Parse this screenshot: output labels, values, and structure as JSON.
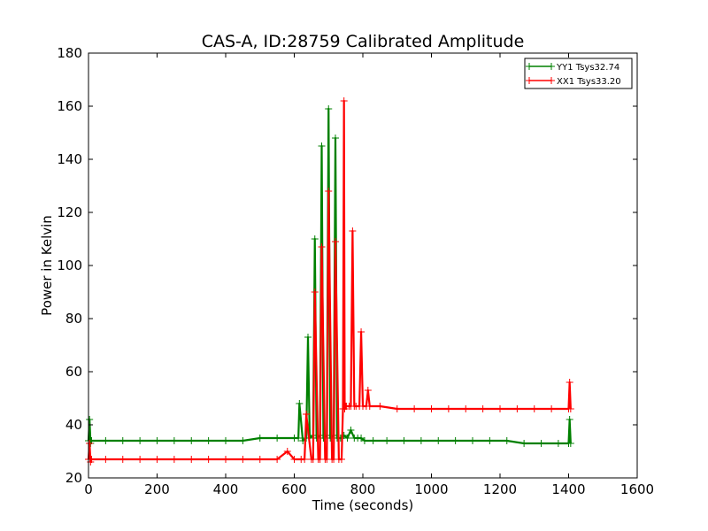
{
  "chart_data": {
    "type": "line",
    "title": "CAS-A, ID:28759 Calibrated Amplitude",
    "xlabel": "Time (seconds)",
    "ylabel": "Power in Kelvin",
    "xlim": [
      0,
      1600
    ],
    "ylim": [
      20,
      180
    ],
    "xticks": [
      0,
      200,
      400,
      600,
      800,
      1000,
      1200,
      1400,
      1600
    ],
    "yticks": [
      20,
      40,
      60,
      80,
      100,
      120,
      140,
      160,
      180
    ],
    "grid": false,
    "legend_position": "top-right",
    "marker": "+",
    "series": [
      {
        "name": "YY1 Tsys32.74",
        "color": "#008000",
        "x": [
          0,
          3,
          6,
          9,
          50,
          100,
          150,
          200,
          250,
          300,
          350,
          400,
          450,
          500,
          550,
          600,
          612,
          615,
          625,
          635,
          640,
          645,
          655,
          660,
          665,
          675,
          680,
          685,
          695,
          700,
          705,
          715,
          720,
          725,
          735,
          745,
          755,
          765,
          775,
          785,
          795,
          805,
          830,
          870,
          920,
          970,
          1020,
          1070,
          1120,
          1170,
          1220,
          1270,
          1320,
          1370,
          1400,
          1403,
          1406
        ],
        "y": [
          34,
          42,
          33,
          34,
          34,
          34,
          34,
          34,
          34,
          34,
          34,
          34,
          34,
          35,
          35,
          35,
          35,
          48,
          34,
          35,
          73,
          35,
          36,
          110,
          35,
          36,
          145,
          35,
          36,
          159,
          35,
          36,
          148,
          35,
          35,
          36,
          35,
          38,
          35,
          35,
          35,
          34,
          34,
          34,
          34,
          34,
          34,
          34,
          34,
          34,
          34,
          33,
          33,
          33,
          33,
          42,
          33
        ]
      },
      {
        "name": "XX1 Tsys33.20",
        "color": "#ff0000",
        "x": [
          0,
          3,
          6,
          9,
          50,
          100,
          150,
          200,
          250,
          300,
          350,
          400,
          450,
          500,
          550,
          580,
          600,
          620,
          630,
          635,
          650,
          655,
          660,
          670,
          675,
          680,
          690,
          695,
          700,
          710,
          715,
          720,
          730,
          738,
          742,
          745,
          747,
          750,
          752,
          760,
          765,
          770,
          775,
          780,
          790,
          795,
          800,
          810,
          815,
          820,
          850,
          900,
          950,
          1000,
          1050,
          1100,
          1150,
          1200,
          1250,
          1300,
          1350,
          1400,
          1403,
          1406
        ],
        "y": [
          27,
          33,
          26,
          27,
          27,
          27,
          27,
          27,
          27,
          27,
          27,
          27,
          27,
          27,
          27,
          30,
          27,
          27,
          27,
          44,
          27,
          27,
          90,
          27,
          27,
          107,
          27,
          27,
          128,
          27,
          27,
          109,
          27,
          27,
          46,
          162,
          46,
          47,
          47,
          47,
          47,
          113,
          47,
          47,
          47,
          75,
          47,
          47,
          53,
          47,
          47,
          46,
          46,
          46,
          46,
          46,
          46,
          46,
          46,
          46,
          46,
          46,
          56,
          46
        ]
      }
    ]
  }
}
